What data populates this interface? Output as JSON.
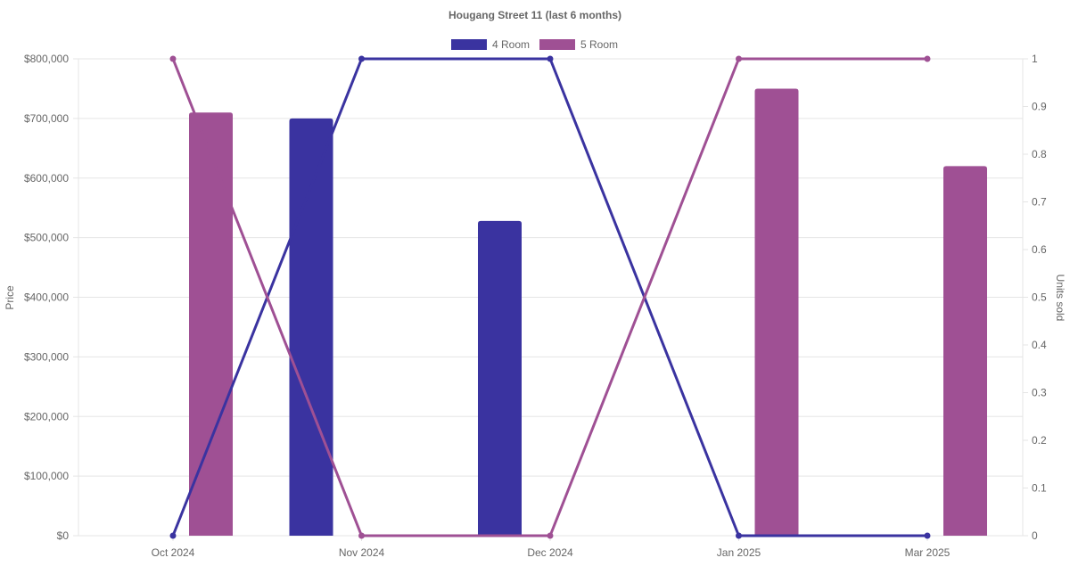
{
  "chart_data": {
    "type": "bar",
    "title": "Hougang Street 11 (last 6 months)",
    "categories": [
      "Oct 2024",
      "Nov 2024",
      "Dec 2024",
      "Jan 2025",
      "Mar 2025"
    ],
    "legend": {
      "position": "top",
      "entries": [
        {
          "label": "4 Room",
          "color": "#3a33a0"
        },
        {
          "label": "5 Room",
          "color": "#9f5094"
        }
      ]
    },
    "y_left": {
      "label": "Price",
      "min": 0,
      "max": 800000,
      "ticks": [
        "$0",
        "$100,000",
        "$200,000",
        "$300,000",
        "$400,000",
        "$500,000",
        "$600,000",
        "$700,000",
        "$800,000"
      ]
    },
    "y_right": {
      "label": "Units sold",
      "min": 0,
      "max": 1,
      "ticks": [
        "0",
        "0.1",
        "0.2",
        "0.3",
        "0.4",
        "0.5",
        "0.6",
        "0.7",
        "0.8",
        "0.9",
        "1"
      ]
    },
    "grid": true,
    "bar_series": [
      {
        "name": "4 Room",
        "color": "#3a33a0",
        "values": [
          null,
          700000,
          528000,
          null,
          null
        ]
      },
      {
        "name": "5 Room",
        "color": "#9f5094",
        "values": [
          710000,
          null,
          null,
          750000,
          620000
        ]
      }
    ],
    "line_series": [
      {
        "name": "4 Room",
        "color": "#3a33a0",
        "values": [
          0,
          1,
          1,
          0,
          0
        ]
      },
      {
        "name": "5 Room",
        "color": "#9f5094",
        "values": [
          1,
          0,
          0,
          1,
          1
        ]
      }
    ]
  }
}
